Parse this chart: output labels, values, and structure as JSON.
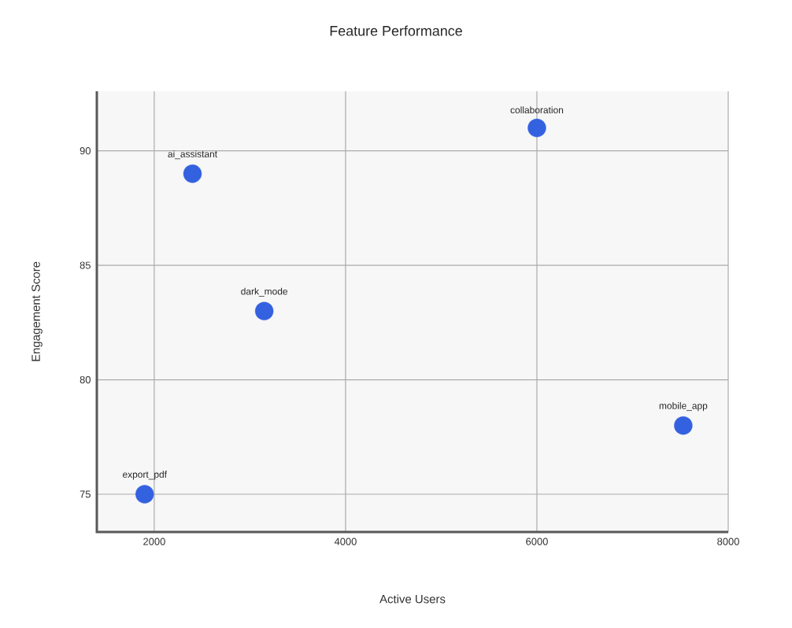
{
  "chart_data": {
    "type": "scatter",
    "title": "Feature Performance",
    "xlabel": "Active Users",
    "ylabel": "Engagement Score",
    "x": [
      2400,
      3150,
      6000,
      7530,
      1900
    ],
    "series": [
      {
        "color": "#3461e0",
        "values": [
          89,
          83,
          91,
          78,
          75
        ]
      }
    ],
    "annotations": [
      {
        "text": "ai_assistant",
        "x": 2400,
        "y": 89
      },
      {
        "text": "dark_mode",
        "x": 3150,
        "y": 83
      },
      {
        "text": "collaboration",
        "x": 6000,
        "y": 91
      },
      {
        "text": "mobile_app",
        "x": 7530,
        "y": 78
      },
      {
        "text": "export_pdf",
        "x": 1900,
        "y": 75
      }
    ],
    "xlim": [
      1400,
      8000
    ],
    "ylim": [
      73.35,
      92.6
    ],
    "xticks": [
      2000,
      4000,
      6000,
      8000
    ],
    "yticks": [
      75,
      80,
      85,
      90
    ],
    "grid": true
  }
}
